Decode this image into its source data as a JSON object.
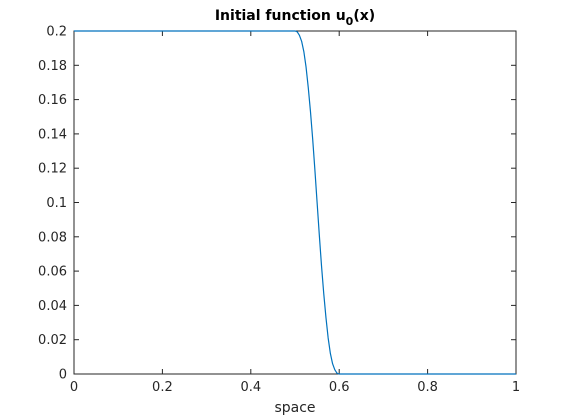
{
  "chart_data": {
    "type": "line",
    "title": "Initial function u",
    "title_subscript": "0",
    "title_suffix": "(x)",
    "xlabel": "space",
    "ylabel": "",
    "xlim": [
      0,
      1
    ],
    "ylim": [
      0,
      0.2
    ],
    "xticks": [
      0,
      0.2,
      0.4,
      0.6,
      0.8,
      1
    ],
    "xtick_labels": [
      "0",
      "0.2",
      "0.4",
      "0.6",
      "0.8",
      "1"
    ],
    "yticks": [
      0,
      0.02,
      0.04,
      0.06,
      0.08,
      0.1,
      0.12,
      0.14,
      0.16,
      0.18,
      0.2
    ],
    "ytick_labels": [
      "0",
      "0.02",
      "0.04",
      "0.06",
      "0.08",
      "0.1",
      "0.12",
      "0.14",
      "0.16",
      "0.18",
      "0.2"
    ],
    "grid": false,
    "box": true,
    "line_color": "#0072BD",
    "series": [
      {
        "x": [
          0,
          0.1,
          0.2,
          0.3,
          0.4,
          0.45,
          0.5,
          0.505,
          0.51,
          0.515,
          0.52,
          0.525,
          0.53,
          0.535,
          0.54,
          0.545,
          0.55,
          0.555,
          0.56,
          0.565,
          0.57,
          0.575,
          0.58,
          0.585,
          0.59,
          0.595,
          0.6,
          0.65,
          0.7,
          0.8,
          0.9,
          1
        ],
        "y": [
          0.2,
          0.2,
          0.2,
          0.2,
          0.2,
          0.2,
          0.2,
          0.1995,
          0.1975,
          0.194,
          0.188,
          0.179,
          0.167,
          0.153,
          0.137,
          0.119,
          0.1,
          0.081,
          0.063,
          0.047,
          0.033,
          0.021,
          0.012,
          0.006,
          0.0025,
          0.0005,
          0,
          0,
          0,
          0,
          0,
          0
        ]
      }
    ]
  }
}
